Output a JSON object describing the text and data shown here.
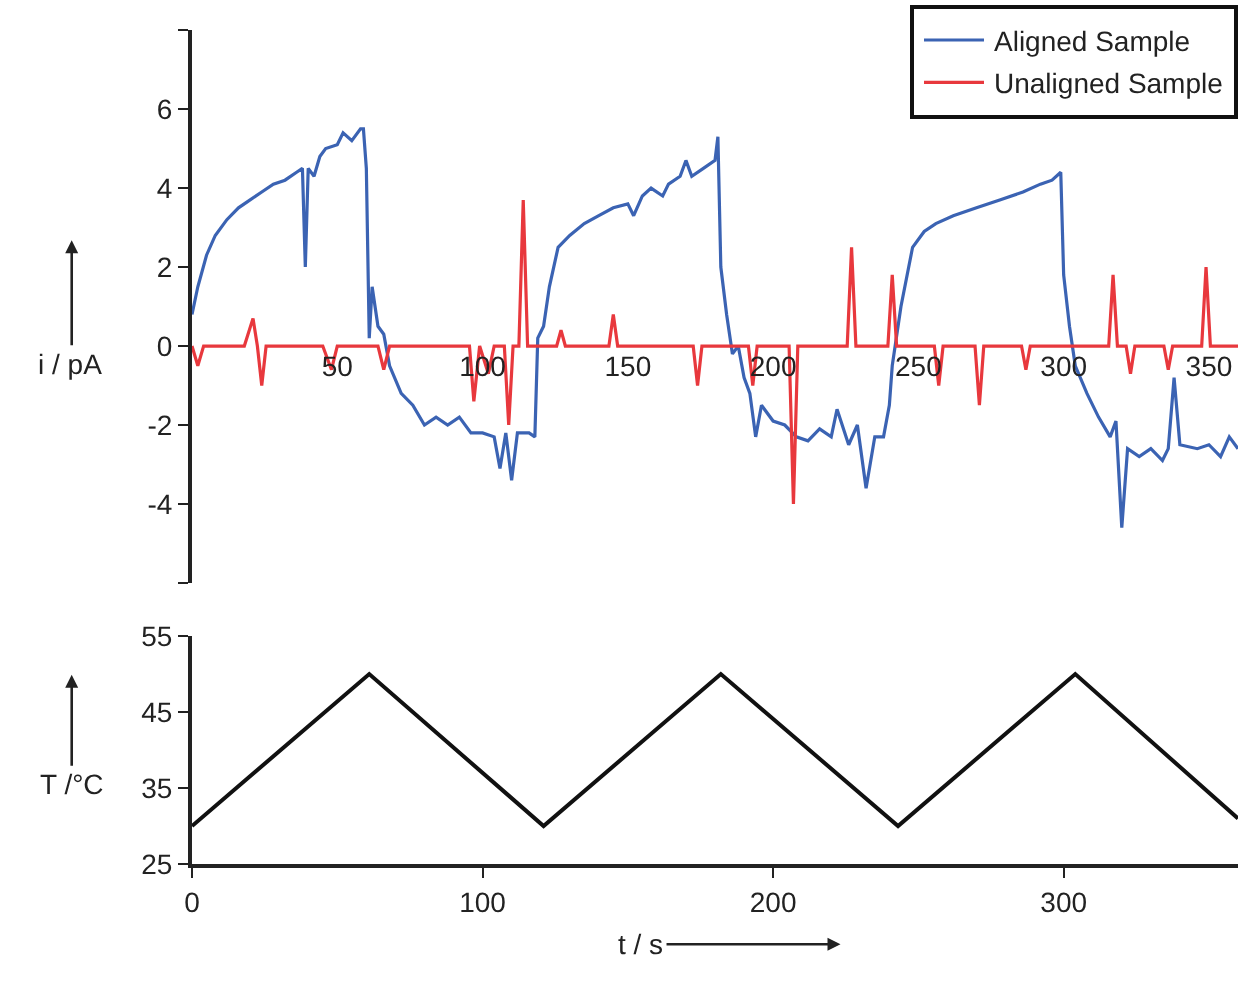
{
  "chart_data": [
    {
      "type": "line",
      "ylabel": "i / pA",
      "xlim": [
        0,
        360
      ],
      "xticks": [
        50,
        100,
        150,
        200,
        250,
        300,
        350
      ],
      "ylim": [
        -6,
        8
      ],
      "yticks": [
        {
          "value": -6,
          "label": null
        },
        -4,
        -2,
        0,
        2,
        4,
        6,
        {
          "value": 8,
          "label": null
        }
      ],
      "legend": "top right",
      "marker": "none",
      "line_style": "solid",
      "series": [
        {
          "name": "Aligned Sample",
          "color": "#3b63b3",
          "x": [
            0,
            2,
            5,
            8,
            12,
            16,
            20,
            24,
            28,
            32,
            36,
            38,
            39,
            40,
            42,
            44,
            46,
            50,
            52,
            55,
            58,
            59,
            60,
            61,
            62,
            64,
            66,
            68,
            72,
            76,
            80,
            84,
            88,
            92,
            96,
            100,
            104,
            106,
            108,
            110,
            112,
            116,
            118,
            119,
            121,
            123,
            126,
            130,
            135,
            140,
            145,
            150,
            152,
            155,
            158,
            162,
            164,
            168,
            170,
            172,
            176,
            180,
            181,
            182,
            184,
            186,
            188,
            190,
            192,
            194,
            196,
            200,
            204,
            208,
            212,
            216,
            220,
            222,
            226,
            229,
            232,
            235,
            238,
            240,
            241,
            244,
            248,
            252,
            256,
            262,
            270,
            278,
            286,
            292,
            296,
            299,
            300,
            302,
            304,
            308,
            312,
            316,
            318,
            320,
            322,
            326,
            330,
            334,
            336,
            338,
            340,
            346,
            350,
            354,
            357,
            360
          ],
          "values": [
            0.8,
            1.5,
            2.3,
            2.8,
            3.2,
            3.5,
            3.7,
            3.9,
            4.1,
            4.2,
            4.4,
            4.5,
            2.0,
            4.5,
            4.3,
            4.8,
            5.0,
            5.1,
            5.4,
            5.2,
            5.5,
            5.5,
            4.5,
            0.2,
            1.5,
            0.5,
            0.3,
            -0.5,
            -1.2,
            -1.5,
            -2.0,
            -1.8,
            -2.0,
            -1.8,
            -2.2,
            -2.2,
            -2.3,
            -3.1,
            -2.2,
            -3.4,
            -2.2,
            -2.2,
            -2.3,
            0.2,
            0.5,
            1.5,
            2.5,
            2.8,
            3.1,
            3.3,
            3.5,
            3.6,
            3.3,
            3.8,
            4.0,
            3.8,
            4.1,
            4.3,
            4.7,
            4.3,
            4.5,
            4.7,
            5.3,
            2.0,
            0.8,
            -0.2,
            0.0,
            -0.8,
            -1.2,
            -2.3,
            -1.5,
            -1.9,
            -2.0,
            -2.3,
            -2.4,
            -2.1,
            -2.3,
            -1.6,
            -2.5,
            -2.0,
            -3.6,
            -2.3,
            -2.3,
            -1.5,
            -0.5,
            1.0,
            2.5,
            2.9,
            3.1,
            3.3,
            3.5,
            3.7,
            3.9,
            4.1,
            4.2,
            4.4,
            1.8,
            0.5,
            -0.5,
            -1.2,
            -1.8,
            -2.3,
            -1.9,
            -4.6,
            -2.6,
            -2.8,
            -2.6,
            -2.9,
            -2.6,
            -0.8,
            -2.5,
            -2.6,
            -2.5,
            -2.8,
            -2.3,
            -2.6
          ]
        },
        {
          "name": "Unaligned Sample",
          "color": "#e8383d",
          "x": [
            0,
            2,
            4,
            18,
            21,
            22.5,
            24,
            25.5,
            45,
            48,
            50,
            64,
            66,
            68,
            95.5,
            97,
            99,
            102,
            104,
            107.5,
            109,
            110.5,
            112.5,
            114,
            115.5,
            125.5,
            127,
            128.5,
            143.5,
            145,
            146.5,
            172.5,
            174,
            175.5,
            191.5,
            193,
            194.5,
            205.5,
            207,
            208.5,
            225.5,
            227,
            228.5,
            239.5,
            241,
            242.5,
            255.5,
            257,
            258.5,
            269.5,
            271,
            272.5,
            285.5,
            287,
            288.5,
            315.5,
            317,
            318.5,
            321.5,
            323,
            324.5,
            334.5,
            336,
            337.5,
            347.5,
            349,
            350.5,
            360
          ],
          "values": [
            0,
            -0.5,
            0,
            0,
            0.7,
            0,
            -1.0,
            0,
            0,
            -0.6,
            0,
            0,
            -0.6,
            0,
            0,
            -1.4,
            0,
            -0.7,
            0,
            0,
            -2.0,
            0,
            0,
            3.7,
            0,
            0,
            0.4,
            0,
            0,
            0.8,
            0,
            0,
            -1.0,
            0,
            0,
            -1.0,
            0,
            0,
            -4.0,
            0,
            0,
            2.5,
            0,
            0,
            1.8,
            0,
            0,
            -1.0,
            0,
            0,
            -1.5,
            0,
            0,
            -0.6,
            0,
            0,
            1.8,
            0,
            0,
            -0.7,
            0,
            0,
            -0.6,
            0,
            0,
            2.0,
            0,
            0
          ]
        }
      ]
    },
    {
      "type": "line",
      "xlabel": "t / s",
      "ylabel": "T /°C",
      "xlim": [
        0,
        360
      ],
      "xticks": [
        0,
        100,
        200,
        300
      ],
      "ylim": [
        25,
        55
      ],
      "yticks": [
        25,
        35,
        45,
        55
      ],
      "marker": "none",
      "line_style": "solid",
      "series": [
        {
          "color": "#111111",
          "x": [
            0,
            61,
            121,
            182,
            243,
            304,
            360
          ],
          "values": [
            30,
            50,
            30,
            50,
            30,
            50,
            31
          ]
        }
      ]
    }
  ]
}
